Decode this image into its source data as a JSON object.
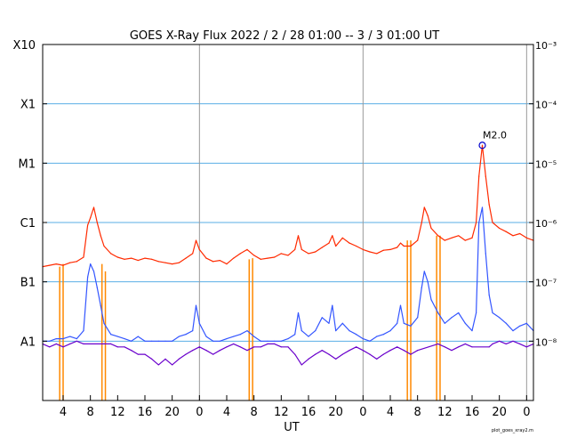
{
  "chart_data": {
    "type": "line",
    "title": "GOES X-Ray Flux   2022 /  2 / 28   01:00 --  3 /  3   01:00   UT",
    "xlabel": "UT",
    "footer": "plot_goes_xray2.m",
    "x_range_hours": [
      0,
      72
    ],
    "x_tick_labels": [
      "4",
      "8",
      "12",
      "16",
      "20",
      "0",
      "4",
      "8",
      "12",
      "16",
      "20",
      "0",
      "4",
      "8",
      "12",
      "16",
      "20",
      "0"
    ],
    "x_tick_hours": [
      3,
      7,
      11,
      15,
      19,
      23,
      27,
      31,
      35,
      39,
      43,
      47,
      51,
      55,
      59,
      63,
      67,
      71
    ],
    "day_boundaries_hours": [
      23,
      47,
      71
    ],
    "y_scale": "log",
    "y_range": [
      1e-09,
      0.001
    ],
    "y_left_labels": [
      {
        "label": "X10",
        "value": 0.001
      },
      {
        "label": "X1",
        "value": 0.0001
      },
      {
        "label": "M1",
        "value": 1e-05
      },
      {
        "label": "C1",
        "value": 1e-06
      },
      {
        "label": "B1",
        "value": 1e-07
      },
      {
        "label": "A1",
        "value": 1e-08
      }
    ],
    "y_right_labels": [
      {
        "label": "10⁻³",
        "value": 0.001
      },
      {
        "label": "10⁻⁴",
        "value": 0.0001
      },
      {
        "label": "10⁻⁵",
        "value": 1e-05
      },
      {
        "label": "10⁻⁶",
        "value": 1e-06
      },
      {
        "label": "10⁻⁷",
        "value": 1e-07
      },
      {
        "label": "10⁻⁸",
        "value": 1e-08
      }
    ],
    "gridlines": [
      0.0001,
      1e-05,
      1e-06,
      1e-07,
      1e-08
    ],
    "annotation": {
      "label": "M2.0",
      "x": 64.5,
      "y": 2e-05
    },
    "series": [
      {
        "color": "#ff2a00",
        "points": [
          [
            0,
            1.8e-07
          ],
          [
            1,
            1.9e-07
          ],
          [
            2,
            2e-07
          ],
          [
            3,
            1.9e-07
          ],
          [
            4,
            2.1e-07
          ],
          [
            5,
            2.2e-07
          ],
          [
            6,
            2.6e-07
          ],
          [
            6.6,
            9e-07
          ],
          [
            7,
            1.2e-06
          ],
          [
            7.5,
            1.8e-06
          ],
          [
            8,
            1e-06
          ],
          [
            8.5,
            6e-07
          ],
          [
            9,
            4e-07
          ],
          [
            10,
            3e-07
          ],
          [
            11,
            2.6e-07
          ],
          [
            12,
            2.4e-07
          ],
          [
            13,
            2.5e-07
          ],
          [
            14,
            2.3e-07
          ],
          [
            15,
            2.5e-07
          ],
          [
            16,
            2.4e-07
          ],
          [
            17,
            2.2e-07
          ],
          [
            18,
            2.1e-07
          ],
          [
            19,
            2e-07
          ],
          [
            20,
            2.1e-07
          ],
          [
            21,
            2.5e-07
          ],
          [
            22,
            3e-07
          ],
          [
            22.5,
            5e-07
          ],
          [
            23,
            3.5e-07
          ],
          [
            24,
            2.5e-07
          ],
          [
            25,
            2.2e-07
          ],
          [
            26,
            2.3e-07
          ],
          [
            27,
            2e-07
          ],
          [
            28,
            2.5e-07
          ],
          [
            29,
            3e-07
          ],
          [
            30,
            3.5e-07
          ],
          [
            31,
            2.8e-07
          ],
          [
            32,
            2.4e-07
          ],
          [
            33,
            2.5e-07
          ],
          [
            34,
            2.6e-07
          ],
          [
            35,
            3e-07
          ],
          [
            36,
            2.8e-07
          ],
          [
            37,
            3.5e-07
          ],
          [
            37.5,
            6e-07
          ],
          [
            38,
            3.5e-07
          ],
          [
            39,
            3e-07
          ],
          [
            40,
            3.2e-07
          ],
          [
            41,
            3.8e-07
          ],
          [
            42,
            4.5e-07
          ],
          [
            42.5,
            6e-07
          ],
          [
            43,
            4e-07
          ],
          [
            44,
            5.5e-07
          ],
          [
            45,
            4.5e-07
          ],
          [
            46,
            4e-07
          ],
          [
            47,
            3.5e-07
          ],
          [
            48,
            3.2e-07
          ],
          [
            49,
            3e-07
          ],
          [
            50,
            3.4e-07
          ],
          [
            51,
            3.5e-07
          ],
          [
            52,
            3.8e-07
          ],
          [
            52.5,
            4.5e-07
          ],
          [
            53,
            4e-07
          ],
          [
            54,
            4e-07
          ],
          [
            55,
            5e-07
          ],
          [
            55.6,
            1e-06
          ],
          [
            56,
            1.8e-06
          ],
          [
            56.5,
            1.3e-06
          ],
          [
            57,
            8e-07
          ],
          [
            58,
            6e-07
          ],
          [
            59,
            5e-07
          ],
          [
            60,
            5.5e-07
          ],
          [
            61,
            6e-07
          ],
          [
            62,
            5e-07
          ],
          [
            63,
            5.5e-07
          ],
          [
            63.6,
            1e-06
          ],
          [
            64,
            6e-06
          ],
          [
            64.5,
            2e-05
          ],
          [
            65,
            6e-06
          ],
          [
            65.5,
            2e-06
          ],
          [
            66,
            1e-06
          ],
          [
            67,
            8e-07
          ],
          [
            68,
            7e-07
          ],
          [
            69,
            6e-07
          ],
          [
            70,
            6.5e-07
          ],
          [
            71,
            5.5e-07
          ],
          [
            72,
            5e-07
          ]
        ]
      },
      {
        "color": "#3355ff",
        "points": [
          [
            0,
            1e-08
          ],
          [
            1,
            1e-08
          ],
          [
            2,
            1.1e-08
          ],
          [
            3,
            1.1e-08
          ],
          [
            4,
            1.2e-08
          ],
          [
            5,
            1.1e-08
          ],
          [
            6,
            1.5e-08
          ],
          [
            6.6,
            1.2e-07
          ],
          [
            7,
            2e-07
          ],
          [
            7.5,
            1.5e-07
          ],
          [
            8,
            8e-08
          ],
          [
            8.5,
            4e-08
          ],
          [
            9,
            2e-08
          ],
          [
            10,
            1.3e-08
          ],
          [
            11,
            1.2e-08
          ],
          [
            12,
            1.1e-08
          ],
          [
            13,
            1e-08
          ],
          [
            14,
            1.2e-08
          ],
          [
            15,
            1e-08
          ],
          [
            16,
            1e-08
          ],
          [
            17,
            1e-08
          ],
          [
            18,
            1e-08
          ],
          [
            19,
            1e-08
          ],
          [
            20,
            1.2e-08
          ],
          [
            21,
            1.3e-08
          ],
          [
            22,
            1.5e-08
          ],
          [
            22.5,
            4e-08
          ],
          [
            23,
            2e-08
          ],
          [
            24,
            1.2e-08
          ],
          [
            25,
            1e-08
          ],
          [
            26,
            1e-08
          ],
          [
            27,
            1.1e-08
          ],
          [
            28,
            1.2e-08
          ],
          [
            29,
            1.3e-08
          ],
          [
            30,
            1.5e-08
          ],
          [
            31,
            1.2e-08
          ],
          [
            32,
            1e-08
          ],
          [
            33,
            1e-08
          ],
          [
            34,
            1e-08
          ],
          [
            35,
            1e-08
          ],
          [
            36,
            1.1e-08
          ],
          [
            37,
            1.3e-08
          ],
          [
            37.5,
            3e-08
          ],
          [
            38,
            1.5e-08
          ],
          [
            39,
            1.2e-08
          ],
          [
            40,
            1.5e-08
          ],
          [
            41,
            2.5e-08
          ],
          [
            42,
            2e-08
          ],
          [
            42.5,
            4e-08
          ],
          [
            43,
            1.5e-08
          ],
          [
            44,
            2e-08
          ],
          [
            45,
            1.5e-08
          ],
          [
            46,
            1.3e-08
          ],
          [
            47,
            1.1e-08
          ],
          [
            48,
            1e-08
          ],
          [
            49,
            1.2e-08
          ],
          [
            50,
            1.3e-08
          ],
          [
            51,
            1.5e-08
          ],
          [
            52,
            2e-08
          ],
          [
            52.5,
            4e-08
          ],
          [
            53,
            2e-08
          ],
          [
            54,
            1.8e-08
          ],
          [
            55,
            2.5e-08
          ],
          [
            55.6,
            8e-08
          ],
          [
            56,
            1.5e-07
          ],
          [
            56.5,
            1e-07
          ],
          [
            57,
            5e-08
          ],
          [
            58,
            3e-08
          ],
          [
            59,
            2e-08
          ],
          [
            60,
            2.5e-08
          ],
          [
            61,
            3e-08
          ],
          [
            62,
            2e-08
          ],
          [
            63,
            1.5e-08
          ],
          [
            63.6,
            3e-08
          ],
          [
            64,
            1e-06
          ],
          [
            64.5,
            1.8e-06
          ],
          [
            65,
            3e-07
          ],
          [
            65.5,
            6e-08
          ],
          [
            66,
            3e-08
          ],
          [
            67,
            2.5e-08
          ],
          [
            68,
            2e-08
          ],
          [
            69,
            1.5e-08
          ],
          [
            70,
            1.8e-08
          ],
          [
            71,
            2e-08
          ],
          [
            72,
            1.5e-08
          ]
        ]
      },
      {
        "color": "#6a00cc",
        "points": [
          [
            0,
            9e-09
          ],
          [
            1,
            8e-09
          ],
          [
            2,
            9e-09
          ],
          [
            3,
            8e-09
          ],
          [
            4,
            9e-09
          ],
          [
            5,
            1e-08
          ],
          [
            6,
            9e-09
          ],
          [
            9,
            9e-09
          ],
          [
            10,
            9e-09
          ],
          [
            11,
            8e-09
          ],
          [
            12,
            8e-09
          ],
          [
            13,
            7e-09
          ],
          [
            14,
            6e-09
          ],
          [
            15,
            6e-09
          ],
          [
            16,
            5e-09
          ],
          [
            17,
            4e-09
          ],
          [
            18,
            5e-09
          ],
          [
            19,
            4e-09
          ],
          [
            20,
            5e-09
          ],
          [
            21,
            6e-09
          ],
          [
            22,
            7e-09
          ],
          [
            23,
            8e-09
          ],
          [
            24,
            7e-09
          ],
          [
            25,
            6e-09
          ],
          [
            26,
            7e-09
          ],
          [
            27,
            8e-09
          ],
          [
            28,
            9e-09
          ],
          [
            29,
            8e-09
          ],
          [
            30,
            7e-09
          ],
          [
            31,
            8e-09
          ],
          [
            32,
            8e-09
          ],
          [
            33,
            9e-09
          ],
          [
            34,
            9e-09
          ],
          [
            35,
            8e-09
          ],
          [
            36,
            8e-09
          ],
          [
            37,
            6e-09
          ],
          [
            38,
            4e-09
          ],
          [
            39,
            5e-09
          ],
          [
            40,
            6e-09
          ],
          [
            41,
            7e-09
          ],
          [
            42,
            6e-09
          ],
          [
            43,
            5e-09
          ],
          [
            44,
            6e-09
          ],
          [
            45,
            7e-09
          ],
          [
            46,
            8e-09
          ],
          [
            47,
            7e-09
          ],
          [
            48,
            6e-09
          ],
          [
            49,
            5e-09
          ],
          [
            50,
            6e-09
          ],
          [
            51,
            7e-09
          ],
          [
            52,
            8e-09
          ],
          [
            53,
            7e-09
          ],
          [
            54,
            6e-09
          ],
          [
            55,
            7e-09
          ],
          [
            58,
            9e-09
          ],
          [
            59,
            8e-09
          ],
          [
            60,
            7e-09
          ],
          [
            61,
            8e-09
          ],
          [
            62,
            9e-09
          ],
          [
            63,
            8e-09
          ],
          [
            65.5,
            8e-09
          ],
          [
            66,
            9e-09
          ],
          [
            67,
            1e-08
          ],
          [
            68,
            9e-09
          ],
          [
            69,
            1e-08
          ],
          [
            70,
            9e-09
          ],
          [
            71,
            8e-09
          ],
          [
            72,
            9e-09
          ]
        ]
      }
    ],
    "orange_gap_markers": [
      {
        "x": 2.5,
        "low": 1e-09,
        "high": 1.8e-07
      },
      {
        "x": 3.0,
        "low": 1e-09,
        "high": 2e-07
      },
      {
        "x": 8.7,
        "low": 1e-09,
        "high": 2e-07
      },
      {
        "x": 9.2,
        "low": 1e-09,
        "high": 1.5e-07
      },
      {
        "x": 30.3,
        "low": 1e-09,
        "high": 2.4e-07
      },
      {
        "x": 30.8,
        "low": 1e-09,
        "high": 2.5e-07
      },
      {
        "x": 53.5,
        "low": 1e-09,
        "high": 5e-07
      },
      {
        "x": 54.0,
        "low": 1e-09,
        "high": 5e-07
      },
      {
        "x": 57.8,
        "low": 1e-09,
        "high": 6e-07
      },
      {
        "x": 58.3,
        "low": 1e-09,
        "high": 6e-07
      }
    ]
  }
}
